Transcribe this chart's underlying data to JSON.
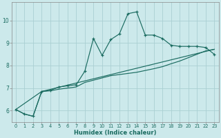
{
  "xlabel": "Humidex (Indice chaleur)",
  "bg_color": "#cce9eb",
  "line_color": "#1a6b60",
  "grid_color": "#aacfd2",
  "xlim": [
    -0.5,
    23.5
  ],
  "ylim": [
    5.5,
    10.8
  ],
  "xticks": [
    0,
    1,
    2,
    3,
    4,
    5,
    6,
    7,
    8,
    9,
    10,
    11,
    12,
    13,
    14,
    15,
    16,
    17,
    18,
    19,
    20,
    21,
    22,
    23
  ],
  "yticks": [
    6,
    7,
    8,
    9,
    10
  ],
  "line1_x": [
    0,
    1,
    2,
    3,
    4,
    5,
    6,
    7,
    8,
    9,
    10,
    11,
    12,
    13,
    14,
    15,
    16,
    17,
    18,
    19,
    20,
    21,
    22,
    23
  ],
  "line1_y": [
    6.05,
    5.85,
    5.75,
    6.85,
    6.9,
    7.05,
    7.1,
    7.15,
    7.75,
    9.2,
    8.45,
    9.15,
    9.4,
    10.3,
    10.38,
    9.35,
    9.35,
    9.2,
    8.9,
    8.85,
    8.85,
    8.85,
    8.8,
    8.5
  ],
  "line2_x": [
    0,
    1,
    2,
    3,
    4,
    5,
    6,
    7,
    8,
    9,
    10,
    11,
    12,
    13,
    14,
    15,
    16,
    17,
    18,
    19,
    20,
    21,
    22,
    23
  ],
  "line2_y": [
    6.05,
    5.85,
    5.75,
    6.85,
    6.88,
    6.95,
    7.0,
    7.05,
    7.25,
    7.35,
    7.45,
    7.55,
    7.6,
    7.65,
    7.7,
    7.78,
    7.86,
    7.95,
    8.08,
    8.2,
    8.35,
    8.5,
    8.65,
    8.72
  ],
  "line3_x": [
    0,
    3,
    23
  ],
  "line3_y": [
    6.05,
    6.85,
    8.72
  ]
}
